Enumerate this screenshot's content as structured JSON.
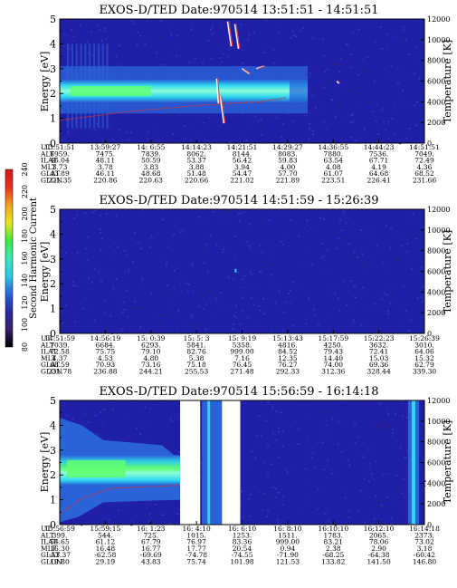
{
  "colors": {
    "bg_dark": "#1f1fa8",
    "bg_mid": "#2a3fc8",
    "band_cyan": "#2fd8f0",
    "band_light": "#70ffe0",
    "band_green": "#60ff70",
    "band_white": "#ffffff",
    "trace_red": "#d03030",
    "gap_white": "#ffffff"
  },
  "colorbar": {
    "label": "Second Harmonic Current",
    "ticks": [
      "80",
      "100",
      "120",
      "140",
      "160",
      "180",
      "200",
      "220",
      "240"
    ],
    "colors": [
      "#000000",
      "#3a1f6a",
      "#2a2a9e",
      "#2a63d8",
      "#2fc8e8",
      "#38e8b8",
      "#40e840",
      "#e8e820",
      "#f0a020",
      "#e83020",
      "#d01818"
    ]
  },
  "chart_data": [
    {
      "type": "heatmap",
      "title": "EXOS-D/TED   Date:970514   13:51:51 - 14:51:51",
      "ylabel": "Energy [eV]",
      "y2label": "Temperature [K]",
      "ylim": [
        0,
        5
      ],
      "y2lim": [
        0,
        12000
      ],
      "yticks": [
        "0",
        "1",
        "2",
        "3",
        "4",
        "5"
      ],
      "y2ticks": [
        "0",
        "2000",
        "4000",
        "6000",
        "8000",
        "10000",
        "12000"
      ],
      "grid": false,
      "features": {
        "band": {
          "x_start": 0.0,
          "x_end": 0.68,
          "energy_center": 2.1,
          "energy_halfwidth": 0.45
        },
        "temperature_trace_k": [
          [
            0.0,
            2200
          ],
          [
            0.2,
            3100
          ],
          [
            0.4,
            3700
          ],
          [
            0.55,
            4000
          ],
          [
            0.62,
            4400
          ]
        ]
      },
      "table": {
        "row_labels": [
          "UT",
          "ALT",
          "ILAT",
          "MLT",
          "GLAT",
          "GLON"
        ],
        "columns": [
          [
            "13:51:51",
            "6959.",
            "46.04",
            "3.73",
            "43.89",
            "221.35"
          ],
          [
            "13:59:27",
            "7475.",
            "48.11",
            "3.78",
            "46.11",
            "220.86"
          ],
          [
            "14: 6:55",
            "7839.",
            "50.59",
            "3.83",
            "48.68",
            "220.63"
          ],
          [
            "14:14:23",
            "8062.",
            "53.37",
            "3.88",
            "51.48",
            "220.66"
          ],
          [
            "14:21:51",
            "8144.",
            "56.42",
            "3.94",
            "54.47",
            "221.02"
          ],
          [
            "14:29:27",
            "8083.",
            "59.83",
            "4.00",
            "57.70",
            "221.89"
          ],
          [
            "14:36:55",
            "7880.",
            "63.54",
            "4.08",
            "61.07",
            "223.51"
          ],
          [
            "14:44:23",
            "7536.",
            "67.71",
            "4.19",
            "64.68",
            "226.41"
          ],
          [
            "14:51:51",
            "7049.",
            "72.49",
            "4.36",
            "68.52",
            "231.66"
          ]
        ]
      }
    },
    {
      "type": "heatmap",
      "title": "EXOS-D/TED   Date:970514   14:51:59 - 15:26:39",
      "ylabel": "Energy [eV]",
      "y2label": "Temperature [K]",
      "ylim": [
        0,
        5
      ],
      "y2lim": [
        0,
        12000
      ],
      "yticks": [
        "0",
        "1",
        "2",
        "3",
        "4",
        "5"
      ],
      "y2ticks": [
        "0",
        "2000",
        "4000",
        "6000",
        "8000",
        "10000",
        "12000"
      ],
      "grid": false,
      "table": {
        "row_labels": [
          "UT",
          "ALT",
          "ILAT",
          "MLT",
          "GLAT",
          "GLON"
        ],
        "columns": [
          [
            "14:51:59",
            "7039.",
            "72.58",
            "4.37",
            "68.59",
            "231.78"
          ],
          [
            "14:56:19",
            "6684.",
            "75.75",
            "4.53",
            "70.93",
            "236.88"
          ],
          [
            "15: 0:39",
            "6293.",
            "79.10",
            "4.80",
            "73.16",
            "244.21"
          ],
          [
            "15: 5: 3",
            "5841.",
            "82.76",
            "5.38",
            "75.18",
            "255.53"
          ],
          [
            "15: 9:19",
            "5358.",
            "999.00",
            "7.16",
            "76.45",
            "271.48"
          ],
          [
            "15:13:43",
            "4816.",
            "84.52",
            "12.35",
            "76.27",
            "292.33"
          ],
          [
            "15:17:59",
            "4250.",
            "79.43",
            "14.40",
            "74.00",
            "312.36"
          ],
          [
            "15:22:23",
            "3632.",
            "72.41",
            "15.03",
            "69.36",
            "328.44"
          ],
          [
            "15:26:39",
            "3010.",
            "64.06",
            "15.32",
            "62.79",
            "339.30"
          ]
        ]
      }
    },
    {
      "type": "heatmap",
      "title": "EXOS-D/TED   Date:970514   15:56:59 - 16:14:18",
      "ylabel": "Energy [eV]",
      "y2label": "Temperature [K]",
      "ylim": [
        0,
        5
      ],
      "y2lim": [
        0,
        12000
      ],
      "yticks": [
        "0",
        "1",
        "2",
        "3",
        "4",
        "5"
      ],
      "y2ticks": [
        "0",
        "2000",
        "4000",
        "6000",
        "8000",
        "10000",
        "12000"
      ],
      "grid": false,
      "features": {
        "data_gaps": [
          [
            0.33,
            0.385
          ],
          [
            0.445,
            0.495
          ]
        ],
        "band": {
          "x_start": 0.0,
          "x_end": 0.33,
          "energy_center": 2.2,
          "energy_halfwidth": 0.6
        }
      },
      "table": {
        "row_labels": [
          "UT",
          "ALT",
          "ILAT",
          "MLT",
          "GLAT",
          "GLON"
        ],
        "columns": [
          [
            "15:56:59",
            "399.",
            "54.65",
            "16.30",
            "-53.37",
            "19.80"
          ],
          [
            "15:59:15",
            "544.",
            "61.12",
            "16.48",
            "-62.58",
            "29.19"
          ],
          [
            "16: 1:23",
            "725.",
            "67.79",
            "16.77",
            "-69.69",
            "43.83"
          ],
          [
            "16: 4:10",
            "1015.",
            "76.97",
            "17.77",
            "-74.78",
            "75.74"
          ],
          [
            "16: 6:10",
            "1253.",
            "83.36",
            "20.54",
            "-74.55",
            "101.98"
          ],
          [
            "16: 8:10",
            "1511.",
            "999.00",
            "0.94",
            "-71.90",
            "121.53"
          ],
          [
            "16:10:10",
            "1783.",
            "83.21",
            "2.38",
            "-68.25",
            "133.82"
          ],
          [
            "16:12:10",
            "2065.",
            "78.06",
            "2.90",
            "-64.38",
            "141.50"
          ],
          [
            "16:14:18",
            "2373.",
            "73.02",
            "3.18",
            "-60.42",
            "146.80"
          ]
        ]
      }
    }
  ]
}
